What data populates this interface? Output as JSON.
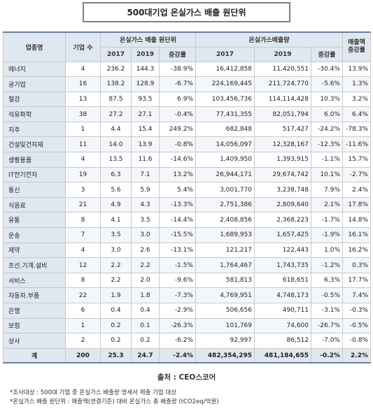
{
  "title": "500대기업 온실가스 배출 원단위",
  "headers": {
    "sector": "업종명",
    "companies": "기업 수",
    "intensity_group": "온실가스 배출 원단위",
    "emission_group": "온실가스배출량",
    "sales_change": "매출액 증감률",
    "y2017": "2017",
    "y2019": "2019",
    "change": "증감률"
  },
  "rows": [
    {
      "sector": "에너지",
      "companies": "4",
      "i2017": "236.2",
      "i2019": "144.3",
      "ichg": "-38.9%",
      "e2017": "16,412,858",
      "e2019": "11,420,551",
      "echg": "-30.4%",
      "sales": "13.9%"
    },
    {
      "sector": "공기업",
      "companies": "16",
      "i2017": "138.2",
      "i2019": "128.9",
      "ichg": "-6.7%",
      "e2017": "224,169,445",
      "e2019": "211,724,770",
      "echg": "-5.6%",
      "sales": "1.3%"
    },
    {
      "sector": "철강",
      "companies": "13",
      "i2017": "87.5",
      "i2019": "93.5",
      "ichg": "6.9%",
      "e2017": "103,456,736",
      "e2019": "114,114,428",
      "echg": "10.3%",
      "sales": "3.2%"
    },
    {
      "sector": "석유화학",
      "companies": "38",
      "i2017": "27.2",
      "i2019": "27.1",
      "ichg": "-0.4%",
      "e2017": "77,431,355",
      "e2019": "82,051,794",
      "echg": "6.0%",
      "sales": "6.4%"
    },
    {
      "sector": "지주",
      "companies": "1",
      "i2017": "4.4",
      "i2019": "15.4",
      "ichg": "249.2%",
      "e2017": "682,848",
      "e2019": "517,427",
      "echg": "-24.2%",
      "sales": "-78.3%"
    },
    {
      "sector": "건설및건자재",
      "companies": "11",
      "i2017": "14.0",
      "i2019": "13.9",
      "ichg": "-0.8%",
      "e2017": "14,056,097",
      "e2019": "12,328,167",
      "echg": "-12.3%",
      "sales": "-11.6%"
    },
    {
      "sector": "생활용품",
      "companies": "4",
      "i2017": "13.5",
      "i2019": "11.6",
      "ichg": "-14.6%",
      "e2017": "1,409,950",
      "e2019": "1,393,915",
      "echg": "-1.1%",
      "sales": "15.7%"
    },
    {
      "sector": "IT전기전자",
      "companies": "19",
      "i2017": "6.3",
      "i2019": "7.1",
      "ichg": "13.2%",
      "e2017": "26,944,171",
      "e2019": "29,674,742",
      "echg": "10.1%",
      "sales": "-2.7%"
    },
    {
      "sector": "통신",
      "companies": "3",
      "i2017": "5.6",
      "i2019": "5.9",
      "ichg": "5.4%",
      "e2017": "3,001,770",
      "e2019": "3,238,748",
      "echg": "7.9%",
      "sales": "2.4%"
    },
    {
      "sector": "식음료",
      "companies": "21",
      "i2017": "4.9",
      "i2019": "4.3",
      "ichg": "-13.3%",
      "e2017": "2,751,386",
      "e2019": "2,809,640",
      "echg": "2.1%",
      "sales": "17.8%"
    },
    {
      "sector": "유통",
      "companies": "8",
      "i2017": "4.1",
      "i2019": "3.5",
      "ichg": "-14.4%",
      "e2017": "2,408,856",
      "e2019": "2,368,223",
      "echg": "-1.7%",
      "sales": "14.8%"
    },
    {
      "sector": "운송",
      "companies": "7",
      "i2017": "3.5",
      "i2019": "3.0",
      "ichg": "-15.5%",
      "e2017": "1,689,953",
      "e2019": "1,657,425",
      "echg": "-1.9%",
      "sales": "16.1%"
    },
    {
      "sector": "제약",
      "companies": "4",
      "i2017": "3.0",
      "i2019": "2.6",
      "ichg": "-13.1%",
      "e2017": "121,217",
      "e2019": "122,443",
      "echg": "1.0%",
      "sales": "16.2%"
    },
    {
      "sector": "조선.기계.설비",
      "companies": "12",
      "i2017": "2.2",
      "i2019": "2.2",
      "ichg": "-1.5%",
      "e2017": "1,764,467",
      "e2019": "1,743,735",
      "echg": "-1.2%",
      "sales": "0.3%"
    },
    {
      "sector": "서비스",
      "companies": "8",
      "i2017": "2.2",
      "i2019": "2.0",
      "ichg": "-9.6%",
      "e2017": "581,813",
      "e2019": "618,651",
      "echg": "6.3%",
      "sales": "17.7%"
    },
    {
      "sector": "자동차.부품",
      "companies": "22",
      "i2017": "1.9",
      "i2019": "1.8",
      "ichg": "-7.3%",
      "e2017": "4,769,951",
      "e2019": "4,748,173",
      "echg": "-0.5%",
      "sales": "7.4%"
    },
    {
      "sector": "은행",
      "companies": "6",
      "i2017": "0.4",
      "i2019": "0.4",
      "ichg": "-2.9%",
      "e2017": "506,656",
      "e2019": "490,711",
      "echg": "-3.1%",
      "sales": "-0.3%"
    },
    {
      "sector": "보험",
      "companies": "1",
      "i2017": "0.2",
      "i2019": "0.1",
      "ichg": "-26.3%",
      "e2017": "101,769",
      "e2019": "74,600",
      "echg": "-26.7%",
      "sales": "-0.5%"
    },
    {
      "sector": "상사",
      "companies": "2",
      "i2017": "0.2",
      "i2019": "0.2",
      "ichg": "-6.2%",
      "e2017": "92,997",
      "e2019": "86,512",
      "echg": "-7.0%",
      "sales": "-0.8%"
    }
  ],
  "total": {
    "sector": "계",
    "companies": "200",
    "i2017": "25.3",
    "i2019": "24.7",
    "ichg": "-2.4%",
    "e2017": "482,354,295",
    "e2019": "481,184,655",
    "echg": "-0.2%",
    "sales": "2.2%"
  },
  "source": "출처 : CEO스코어",
  "notes": [
    "*조사대상 : 500대 기업 중 온실가스 배출량 명세서 제출 기업 대상",
    "*온실가스 배출 원단위 : 매출액(연결기준) 대비 온실가스 총 배출량 (tCO2eq/억원)"
  ]
}
